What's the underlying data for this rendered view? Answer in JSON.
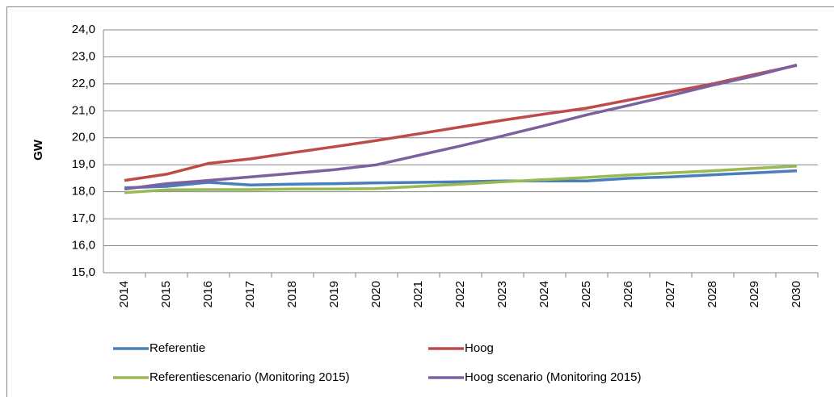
{
  "chart_data": {
    "type": "line",
    "y_label": "GW",
    "categories": [
      "2014",
      "2015",
      "2016",
      "2017",
      "2018",
      "2019",
      "2020",
      "2021",
      "2022",
      "2023",
      "2024",
      "2025",
      "2026",
      "2027",
      "2028",
      "2029",
      "2030"
    ],
    "series": [
      {
        "name": "Referentie",
        "color": "#4a7ebb",
        "values": [
          18.15,
          18.2,
          18.35,
          18.25,
          18.28,
          18.3,
          18.33,
          18.35,
          18.37,
          18.4,
          18.4,
          18.4,
          18.5,
          18.55,
          18.63,
          18.7,
          18.78
        ]
      },
      {
        "name": "Hoog",
        "color": "#be4b48",
        "values": [
          18.42,
          18.65,
          19.05,
          19.22,
          19.45,
          19.67,
          19.9,
          20.15,
          20.4,
          20.65,
          20.88,
          21.1,
          21.4,
          21.7,
          22.0,
          22.35,
          22.68
        ]
      },
      {
        "name": "Referentiescenario (Monitoring 2015)",
        "color": "#98b954",
        "values": [
          17.97,
          18.07,
          18.08,
          18.08,
          18.1,
          18.1,
          18.12,
          18.2,
          18.28,
          18.37,
          18.45,
          18.53,
          18.62,
          18.7,
          18.78,
          18.87,
          18.95
        ]
      },
      {
        "name": "Hoog scenario (Monitoring 2015)",
        "color": "#7d60a0",
        "values": [
          18.1,
          18.3,
          18.42,
          18.55,
          18.68,
          18.82,
          19.0,
          19.35,
          19.7,
          20.07,
          20.45,
          20.85,
          21.2,
          21.57,
          21.95,
          22.3,
          22.7
        ]
      }
    ],
    "ylim": [
      15,
      24
    ],
    "yticks": [
      {
        "value": 15,
        "label": "15,0"
      },
      {
        "value": 16,
        "label": "16,0"
      },
      {
        "value": 17,
        "label": "17,0"
      },
      {
        "value": 18,
        "label": "18,0"
      },
      {
        "value": 19,
        "label": "19,0"
      },
      {
        "value": 20,
        "label": "20,0"
      },
      {
        "value": 21,
        "label": "21,0"
      },
      {
        "value": 22,
        "label": "22,0"
      },
      {
        "value": 23,
        "label": "23,0"
      },
      {
        "value": 24,
        "label": "24,0"
      }
    ],
    "grid": true
  }
}
